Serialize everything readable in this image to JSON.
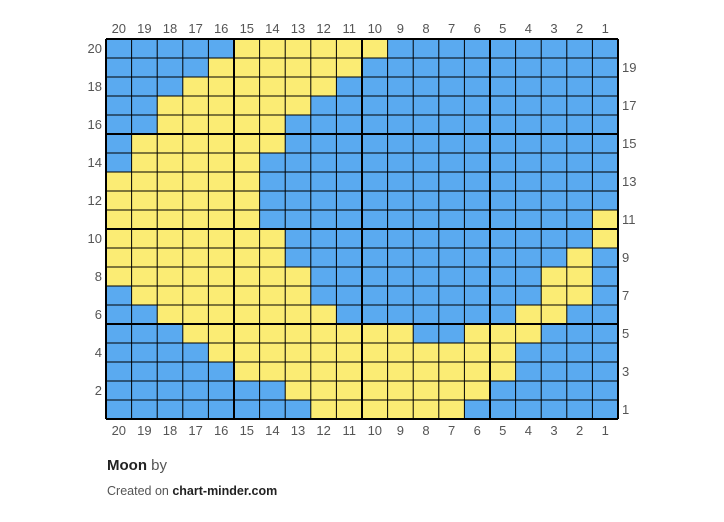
{
  "colors": {
    "background": "#5aaaf0",
    "motif": "#fbec74",
    "grid": "#000000"
  },
  "chart_data": {
    "type": "heatmap",
    "columns": 20,
    "rows": 20,
    "column_labels_top": [
      "20",
      "19",
      "18",
      "17",
      "16",
      "15",
      "14",
      "13",
      "12",
      "11",
      "10",
      "9",
      "8",
      "7",
      "6",
      "5",
      "4",
      "3",
      "2",
      "1"
    ],
    "column_labels_bottom": [
      "20",
      "19",
      "18",
      "17",
      "16",
      "15",
      "14",
      "13",
      "12",
      "11",
      "10",
      "9",
      "8",
      "7",
      "6",
      "5",
      "4",
      "3",
      "2",
      "1"
    ],
    "row_labels_left": [
      "20",
      "18",
      "16",
      "14",
      "12",
      "10",
      "8",
      "6",
      "4",
      "2"
    ],
    "row_labels_right": [
      "19",
      "17",
      "15",
      "13",
      "11",
      "9",
      "7",
      "5",
      "3",
      "1"
    ],
    "legend": {
      "B": "background blue",
      "Y": "moon yellow"
    },
    "rows_top_to_bottom": [
      "BBBBBYYYYYYBBBBBBBBB",
      "BBBBYYYYYYBBBBBBBBBB",
      "BBBYYYYYYBBBBBBBBBBB",
      "BBYYYYYYBBBBBBBBBBBB",
      "BBYYYYYBBBBBBBBBBBBB",
      "BYYYYYYBBBBBBBBBBBBB",
      "BYYYYYBBBBBBBBBBBBBB",
      "YYYYYYBBBBBBBBBBBBBB",
      "YYYYYYBBBBBBBBBBBBBB",
      "YYYYYYBBBBBBBBBBBBBY",
      "YYYYYYYBBBBBBBBBBBBY",
      "YYYYYYYBBBBBBBBBBBYB",
      "YYYYYYYYBBBBBBBBBYYB",
      "BYYYYYYYBBBBBBBBBYYB",
      "BBYYYYYYYBBBBBBBYYBB",
      "BBBYYYYYYYYYBBYYYBBB",
      "BBBBYYYYYYYYYYYYBBBB",
      "BBBBBYYYYYYYYYYYBBBB",
      "BBBBBBBYYYYYYYYBBBBB",
      "BBBBBBBBYYYYYYBBBBBB"
    ]
  },
  "footer": {
    "title": "Moon",
    "by": "by",
    "created_prefix": "Created on",
    "site": "chart-minder.com"
  }
}
